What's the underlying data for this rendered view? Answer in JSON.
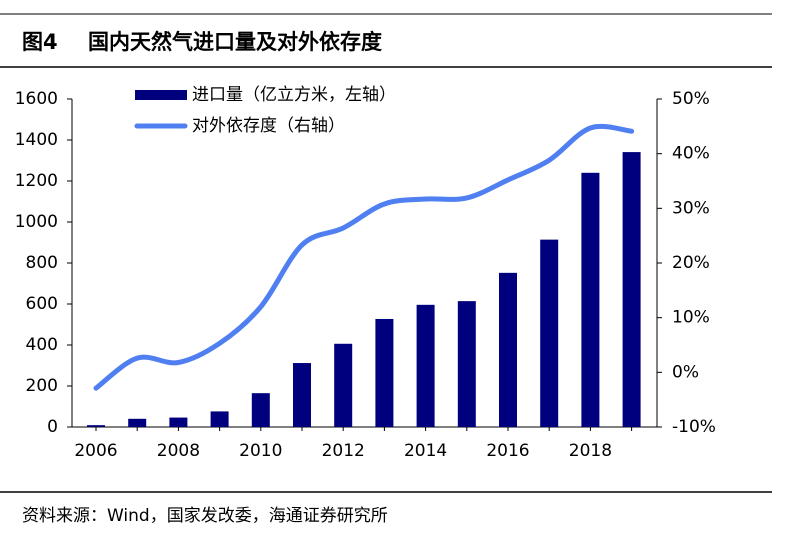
{
  "chart_data": {
    "type": "bar",
    "figure_label": "图4",
    "title": "国内天然气进口量及对外依存度",
    "source": "资料来源：Wind，国家发改委，海通证券研究所",
    "categories": [
      "2006",
      null,
      "2008",
      null,
      "2010",
      null,
      "2012",
      null,
      "2014",
      null,
      "2016",
      null,
      "2018",
      null
    ],
    "series": [
      {
        "name": "进口量（亿立方米，左轴）",
        "type": "bar",
        "color": "#00007f",
        "values": [
          9,
          40,
          46,
          76,
          165,
          312,
          406,
          527,
          596,
          614,
          752,
          914,
          1240,
          1341
        ]
      },
      {
        "name": "对外依存度（右轴）",
        "type": "line",
        "axis": "y2",
        "color": "#4f7ff0",
        "values": [
          -2.9,
          2.6,
          1.8,
          5.3,
          12,
          23.3,
          26.4,
          30.8,
          31.7,
          31.9,
          35.2,
          38.8,
          44.7,
          44.1
        ]
      }
    ],
    "ylim": [
      0,
      1600
    ],
    "yticks": [
      0,
      200,
      400,
      600,
      800,
      1000,
      1200,
      1400,
      1600
    ],
    "y2lim": [
      -10,
      50
    ],
    "y2ticks": [
      {
        "value": -10,
        "label": "-10%"
      },
      {
        "value": 0,
        "label": "0%"
      },
      {
        "value": 10,
        "label": "10%"
      },
      {
        "value": 20,
        "label": "20%"
      },
      {
        "value": 30,
        "label": "30%"
      },
      {
        "value": 40,
        "label": "40%"
      },
      {
        "value": 50,
        "label": "50%"
      }
    ],
    "grid": false
  }
}
